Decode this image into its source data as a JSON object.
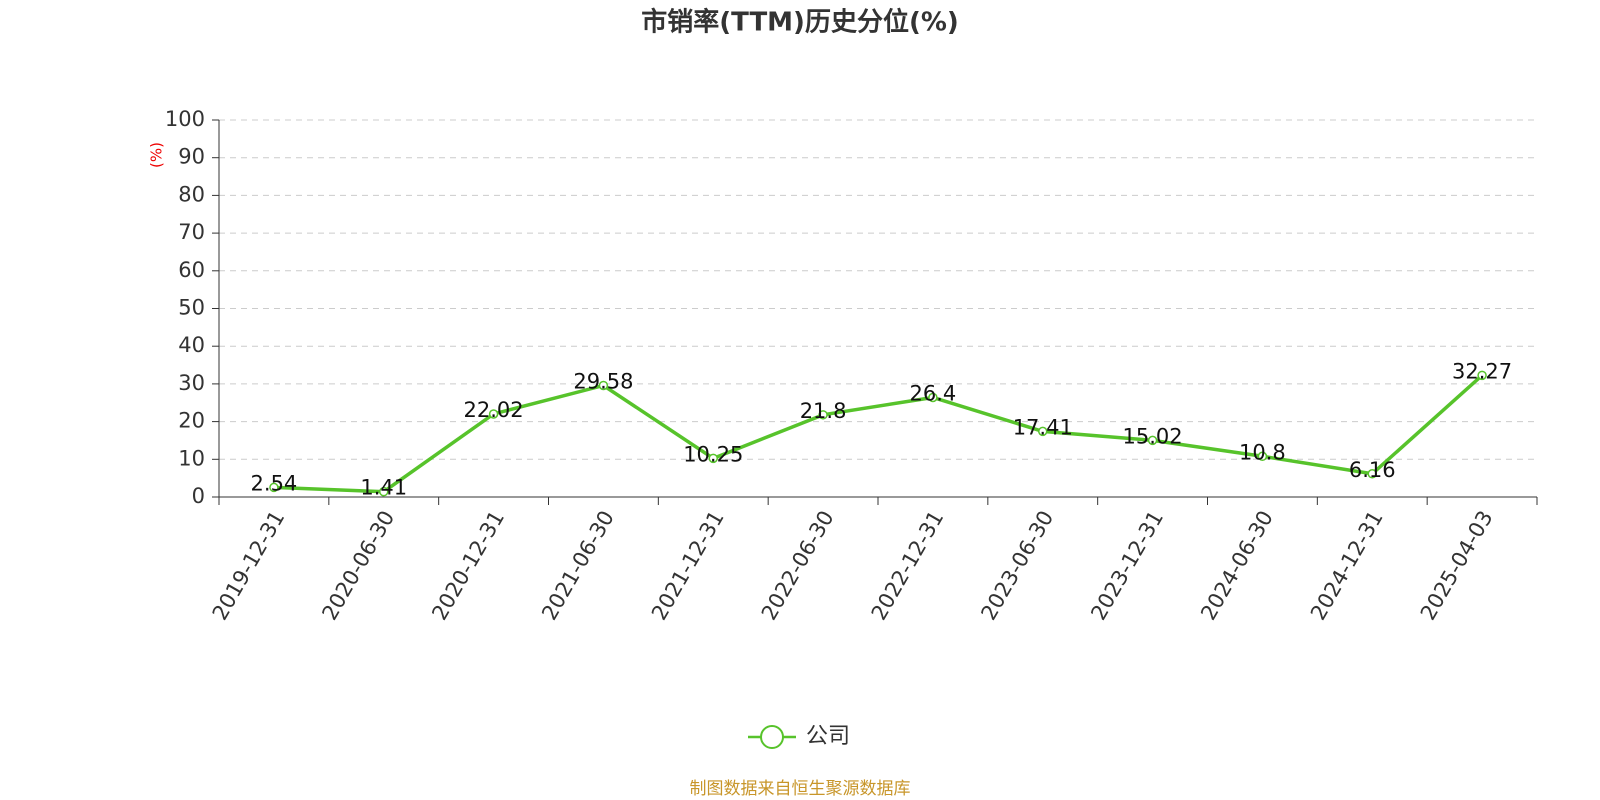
{
  "chart_data": {
    "type": "line",
    "title": "市销率(TTM)历史分位(%)",
    "y_label": "(%)",
    "categories": [
      "2019-12-31",
      "2020-06-30",
      "2020-12-31",
      "2021-06-30",
      "2021-12-31",
      "2022-06-30",
      "2022-12-31",
      "2023-06-30",
      "2023-12-31",
      "2024-06-30",
      "2024-12-31",
      "2025-04-03"
    ],
    "series": [
      {
        "name": "公司",
        "color": "#57c32b",
        "values": [
          2.54,
          1.41,
          22.02,
          29.58,
          10.25,
          21.8,
          26.4,
          17.41,
          15.02,
          10.8,
          6.16,
          32.27
        ]
      }
    ],
    "ylim": [
      0,
      100
    ],
    "yticks": [
      0,
      10,
      20,
      30,
      40,
      50,
      60,
      70,
      80,
      90,
      100
    ],
    "grid": true,
    "legend": "bottom",
    "source": "制图数据来自恒生聚源数据库"
  }
}
